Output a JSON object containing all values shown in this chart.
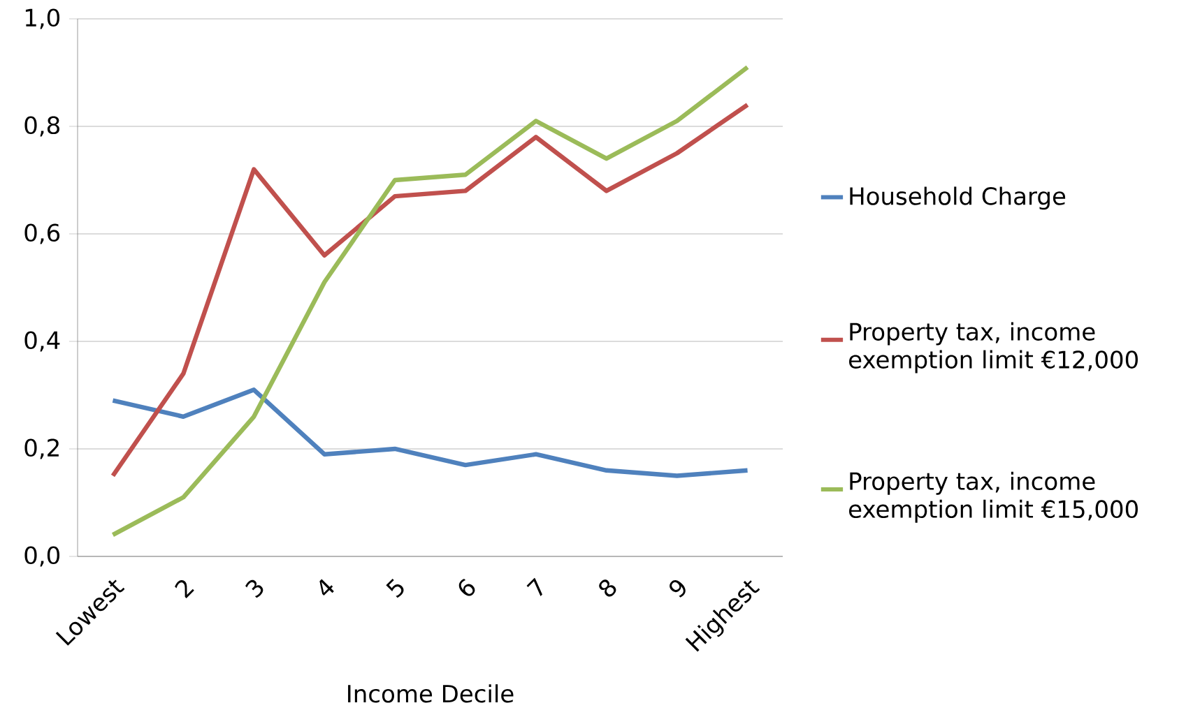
{
  "chart_data": {
    "type": "line",
    "xlabel": "Income Decile",
    "categories": [
      "Lowest",
      "2",
      "3",
      "4",
      "5",
      "6",
      "7",
      "8",
      "9",
      "Highest"
    ],
    "series": [
      {
        "name": "Household Charge",
        "color": "#4f81bd",
        "values": [
          0.29,
          0.26,
          0.31,
          0.19,
          0.2,
          0.17,
          0.19,
          0.16,
          0.15,
          0.16
        ]
      },
      {
        "name": "Property tax, income exemption limit €12,000",
        "color": "#c0504d",
        "values": [
          0.15,
          0.34,
          0.72,
          0.56,
          0.67,
          0.68,
          0.78,
          0.68,
          0.75,
          0.84
        ]
      },
      {
        "name": "Property tax, income exemption limit €15,000",
        "color": "#9bbb59",
        "values": [
          0.04,
          0.11,
          0.26,
          0.51,
          0.7,
          0.71,
          0.81,
          0.74,
          0.81,
          0.91
        ]
      }
    ],
    "ylim": [
      0,
      1.0
    ],
    "yticks": [
      {
        "value": 0,
        "label": "0,0"
      },
      {
        "value": 0.2,
        "label": "0,2"
      },
      {
        "value": 0.4,
        "label": "0,4"
      },
      {
        "value": 0.6,
        "label": "0,6"
      },
      {
        "value": 0.8,
        "label": "0,8"
      },
      {
        "value": 1.0,
        "label": "1,0"
      }
    ],
    "grid": "y",
    "legend": "right",
    "marker": "none",
    "line_style": "solid"
  }
}
